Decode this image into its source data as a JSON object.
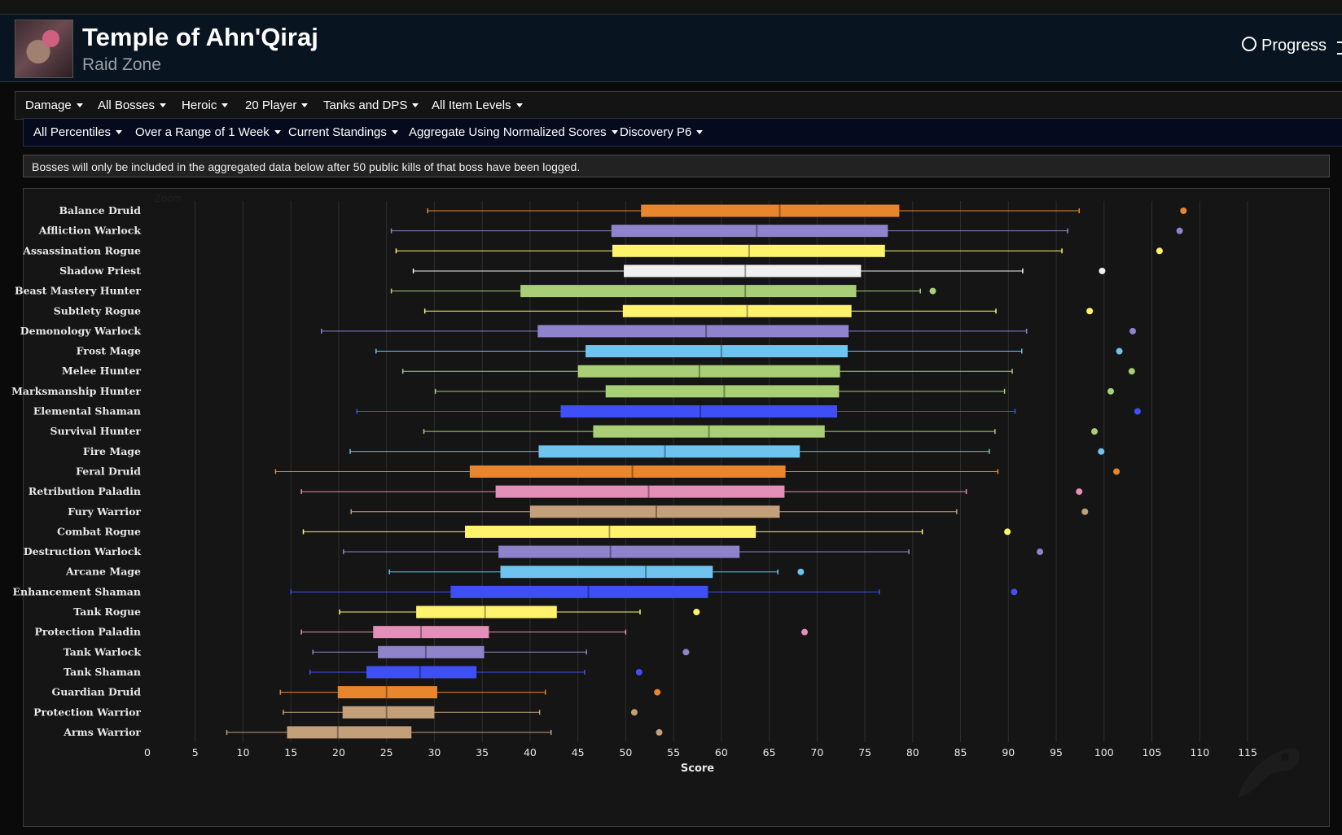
{
  "header": {
    "title": "Temple of Ahn'Qiraj",
    "subtitle": "Raid Zone",
    "progress_label": "Progress"
  },
  "filters_row1": [
    {
      "label": "Damage"
    },
    {
      "label": "All Bosses"
    },
    {
      "label": "Heroic"
    },
    {
      "label": "20 Player"
    },
    {
      "label": "Tanks and DPS"
    },
    {
      "label": "All Item Levels"
    }
  ],
  "filters_row2": [
    {
      "label": "All Percentiles"
    },
    {
      "label": "Over a Range of 1 Week"
    },
    {
      "label": "Current Standings"
    },
    {
      "label": "Aggregate Using Normalized Scores"
    },
    {
      "label": "Discovery P6"
    }
  ],
  "notice": "Bosses will only be included in the aggregated data below after 50 public kills of that boss have been logged.",
  "chart": {
    "zoom_label": "Zoom"
  },
  "colors": {
    "druid": "#e8862e",
    "warlock": "#8f84cc",
    "rogue": "#fff36e",
    "priest": "#f0f0f0",
    "hunter": "#a9cf76",
    "mage": "#6ec3ef",
    "shaman": "#3e4ff5",
    "paladin": "#e290b8",
    "warrior": "#c4a07a"
  },
  "chart_data": {
    "type": "boxplot",
    "xlabel": "Score",
    "xlim": [
      0,
      115
    ],
    "xticks": [
      0,
      5,
      10,
      15,
      20,
      25,
      30,
      35,
      40,
      45,
      50,
      55,
      60,
      65,
      70,
      75,
      80,
      85,
      90,
      95,
      100,
      105,
      110,
      115
    ],
    "grid": true,
    "series": [
      {
        "name": "Balance Druid",
        "color": "#e8862e",
        "min": 29.3,
        "q1": 51.6,
        "median": 66.1,
        "q3": 78.6,
        "max": 97.4,
        "outlier": 108.3
      },
      {
        "name": "Affliction Warlock",
        "color": "#8f84cc",
        "min": 25.5,
        "q1": 48.5,
        "median": 63.7,
        "q3": 77.4,
        "max": 96.2,
        "outlier": 107.9
      },
      {
        "name": "Assassination Rogue",
        "color": "#fff36e",
        "min": 26.0,
        "q1": 48.6,
        "median": 62.9,
        "q3": 77.1,
        "max": 95.6,
        "outlier": 105.8
      },
      {
        "name": "Shadow Priest",
        "color": "#f0f0f0",
        "min": 27.8,
        "q1": 49.8,
        "median": 62.5,
        "q3": 74.6,
        "max": 91.5,
        "outlier": 99.8
      },
      {
        "name": "Beast Mastery Hunter",
        "color": "#a9cf76",
        "min": 25.5,
        "q1": 39.0,
        "median": 62.5,
        "q3": 74.1,
        "max": 80.8,
        "outlier": 82.1
      },
      {
        "name": "Subtlety Rogue",
        "color": "#fff36e",
        "min": 29.0,
        "q1": 49.7,
        "median": 62.7,
        "q3": 73.6,
        "max": 88.7,
        "outlier": 98.5
      },
      {
        "name": "Demonology Warlock",
        "color": "#8f84cc",
        "min": 18.2,
        "q1": 40.8,
        "median": 58.4,
        "q3": 73.3,
        "max": 91.9,
        "outlier": 103.0
      },
      {
        "name": "Frost Mage",
        "color": "#6ec3ef",
        "min": 23.9,
        "q1": 45.8,
        "median": 60.0,
        "q3": 73.2,
        "max": 91.4,
        "outlier": 101.6
      },
      {
        "name": "Melee Hunter",
        "color": "#a9cf76",
        "min": 26.7,
        "q1": 45.0,
        "median": 57.7,
        "q3": 72.4,
        "max": 90.4,
        "outlier": 102.9
      },
      {
        "name": "Marksmanship Hunter",
        "color": "#a9cf76",
        "min": 30.1,
        "q1": 47.9,
        "median": 60.3,
        "q3": 72.3,
        "max": 89.6,
        "outlier": 100.7
      },
      {
        "name": "Elemental Shaman",
        "color": "#3e4ff5",
        "min": 21.9,
        "q1": 43.2,
        "median": 57.8,
        "q3": 72.1,
        "max": 90.7,
        "outlier": 103.5
      },
      {
        "name": "Survival Hunter",
        "color": "#a9cf76",
        "min": 28.9,
        "q1": 46.6,
        "median": 58.7,
        "q3": 70.8,
        "max": 88.6,
        "outlier": 99.0
      },
      {
        "name": "Fire Mage",
        "color": "#6ec3ef",
        "min": 21.2,
        "q1": 40.9,
        "median": 54.1,
        "q3": 68.2,
        "max": 88.0,
        "outlier": 99.7
      },
      {
        "name": "Feral Druid",
        "color": "#e8862e",
        "min": 13.4,
        "q1": 33.7,
        "median": 50.7,
        "q3": 66.7,
        "max": 88.9,
        "outlier": 101.3
      },
      {
        "name": "Retribution Paladin",
        "color": "#e290b8",
        "min": 16.1,
        "q1": 36.4,
        "median": 52.4,
        "q3": 66.6,
        "max": 85.6,
        "outlier": 97.4
      },
      {
        "name": "Fury Warrior",
        "color": "#c4a07a",
        "min": 21.3,
        "q1": 40.0,
        "median": 53.2,
        "q3": 66.1,
        "max": 84.6,
        "outlier": 98.0
      },
      {
        "name": "Combat Rogue",
        "color": "#fff36e",
        "min": 16.3,
        "q1": 33.2,
        "median": 48.3,
        "q3": 63.6,
        "max": 81.0,
        "outlier": 89.9
      },
      {
        "name": "Destruction Warlock",
        "color": "#8f84cc",
        "min": 20.5,
        "q1": 36.7,
        "median": 48.4,
        "q3": 61.9,
        "max": 79.6,
        "outlier": 93.3
      },
      {
        "name": "Arcane Mage",
        "color": "#6ec3ef",
        "min": 25.3,
        "q1": 36.9,
        "median": 52.1,
        "q3": 59.1,
        "max": 65.9,
        "outlier": 68.3
      },
      {
        "name": "Enhancement Shaman",
        "color": "#3e4ff5",
        "min": 15.0,
        "q1": 31.7,
        "median": 46.1,
        "q3": 58.6,
        "max": 76.5,
        "outlier": 90.6
      },
      {
        "name": "Tank Rogue",
        "color": "#fff36e",
        "min": 20.1,
        "q1": 28.1,
        "median": 35.3,
        "q3": 42.8,
        "max": 51.5,
        "outlier": 57.4
      },
      {
        "name": "Protection Paladin",
        "color": "#e290b8",
        "min": 16.1,
        "q1": 23.6,
        "median": 28.6,
        "q3": 35.7,
        "max": 50.0,
        "outlier": 68.7
      },
      {
        "name": "Tank Warlock",
        "color": "#8f84cc",
        "min": 17.3,
        "q1": 24.1,
        "median": 29.1,
        "q3": 35.2,
        "max": 45.9,
        "outlier": 56.3
      },
      {
        "name": "Tank Shaman",
        "color": "#3e4ff5",
        "min": 17.0,
        "q1": 22.9,
        "median": 28.5,
        "q3": 34.4,
        "max": 45.7,
        "outlier": 51.4
      },
      {
        "name": "Guardian Druid",
        "color": "#e8862e",
        "min": 13.9,
        "q1": 19.9,
        "median": 25.0,
        "q3": 30.3,
        "max": 41.6,
        "outlier": 53.3
      },
      {
        "name": "Protection Warrior",
        "color": "#c4a07a",
        "min": 14.2,
        "q1": 20.4,
        "median": 25.0,
        "q3": 30.0,
        "max": 41.0,
        "outlier": 50.9
      },
      {
        "name": "Arms Warrior",
        "color": "#c4a07a",
        "min": 8.3,
        "q1": 14.6,
        "median": 19.9,
        "q3": 27.6,
        "max": 42.2,
        "outlier": 53.5
      }
    ]
  }
}
